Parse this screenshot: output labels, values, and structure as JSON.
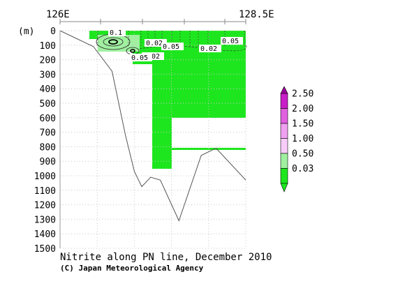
{
  "chart_data": {
    "type": "heatmap",
    "title": "Nitrite along PN line, December 2010",
    "credit": "(C) Japan Meteorological Agency",
    "x_labels": [
      "126E",
      "128.5E"
    ],
    "x_range": [
      126.0,
      128.5
    ],
    "y_unit": "(m)",
    "y_ticks": [
      0,
      100,
      200,
      300,
      400,
      500,
      600,
      700,
      800,
      900,
      1000,
      1100,
      1200,
      1300,
      1400,
      1500
    ],
    "ylim": [
      1500,
      0
    ],
    "grid": true,
    "legend_position": "right",
    "colorbar": {
      "labels": [
        "2.50",
        "2.00",
        "1.50",
        "1.00",
        "0.50",
        "0.03"
      ],
      "colors": [
        "#c81ec8",
        "#e060e0",
        "#f0a0f0",
        "#f8ccf8",
        "#a0f0a0",
        "#1ee61e"
      ]
    },
    "contour_labels": [
      "0.1",
      "0.02",
      "0.05",
      "0.05",
      "0.02",
      "0.02",
      "0.05",
      "0.02",
      "0.05"
    ],
    "bottom_profile": [
      {
        "lon": 126.0,
        "depth": 0
      },
      {
        "lon": 126.45,
        "depth": 110
      },
      {
        "lon": 126.7,
        "depth": 280
      },
      {
        "lon": 126.88,
        "depth": 720
      },
      {
        "lon": 127.0,
        "depth": 970
      },
      {
        "lon": 127.1,
        "depth": 1075
      },
      {
        "lon": 127.22,
        "depth": 1010
      },
      {
        "lon": 127.35,
        "depth": 1030
      },
      {
        "lon": 127.6,
        "depth": 1310
      },
      {
        "lon": 127.9,
        "depth": 860
      },
      {
        "lon": 128.1,
        "depth": 810
      },
      {
        "lon": 128.5,
        "depth": 1030
      }
    ]
  }
}
